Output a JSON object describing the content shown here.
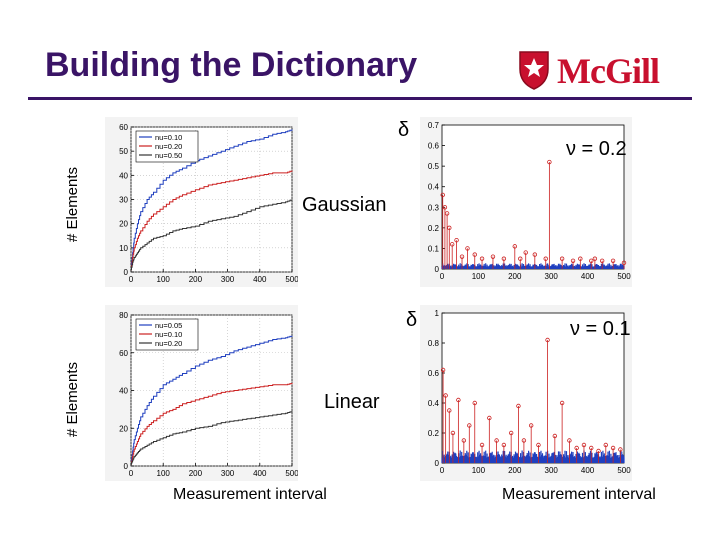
{
  "slide": {
    "title": "Building the Dictionary",
    "logo_text": "McGill",
    "labels": {
      "ylabel_top": "# Elements",
      "ylabel_bottom": "# Elements",
      "gaussian": "Gaussian",
      "linear": "Linear",
      "delta_top": "δ",
      "delta_bottom": "δ",
      "nu_top": "ν = 0.2",
      "nu_bottom": "ν = 0.1",
      "xlabel_left": "Measurement interval",
      "xlabel_right": "Measurement interval"
    }
  },
  "chart_data": [
    {
      "type": "line",
      "id": "gaussian-elements",
      "title": "",
      "xlabel": "Measurement interval",
      "ylabel": "# Elements",
      "xlim": [
        0,
        500
      ],
      "ylim": [
        0,
        60
      ],
      "xticks": [
        0,
        100,
        200,
        300,
        400,
        500
      ],
      "yticks": [
        0,
        10,
        20,
        30,
        40,
        50,
        60
      ],
      "grid": true,
      "legend": "top-left",
      "series": [
        {
          "name": "nu=0.10",
          "color": "#1f3fbf",
          "x": [
            0,
            5,
            10,
            20,
            30,
            50,
            70,
            100,
            130,
            160,
            200,
            240,
            280,
            320,
            360,
            400,
            440,
            480,
            500
          ],
          "y": [
            2,
            8,
            14,
            20,
            25,
            30,
            33,
            38,
            41,
            43,
            46,
            48,
            50,
            52,
            54,
            55,
            57,
            58,
            59
          ]
        },
        {
          "name": "nu=0.20",
          "color": "#cc2020",
          "x": [
            0,
            5,
            10,
            20,
            30,
            50,
            70,
            100,
            130,
            160,
            200,
            240,
            280,
            320,
            360,
            400,
            440,
            480,
            500
          ],
          "y": [
            1,
            6,
            10,
            14,
            17,
            21,
            24,
            27,
            30,
            32,
            34,
            36,
            37,
            38,
            39,
            40,
            41,
            41,
            42
          ]
        },
        {
          "name": "nu=0.50",
          "color": "#333333",
          "x": [
            0,
            5,
            10,
            20,
            30,
            50,
            70,
            100,
            130,
            160,
            200,
            240,
            280,
            320,
            360,
            400,
            440,
            480,
            500
          ],
          "y": [
            1,
            4,
            6,
            8,
            10,
            12,
            14,
            15,
            17,
            18,
            19,
            21,
            22,
            23,
            25,
            27,
            28,
            29,
            30
          ]
        }
      ]
    },
    {
      "type": "line",
      "id": "linear-elements",
      "title": "",
      "xlabel": "Measurement interval",
      "ylabel": "# Elements",
      "xlim": [
        0,
        500
      ],
      "ylim": [
        0,
        80
      ],
      "xticks": [
        0,
        100,
        200,
        300,
        400,
        500
      ],
      "yticks": [
        0,
        20,
        40,
        60,
        80
      ],
      "grid": true,
      "legend": "top-left",
      "series": [
        {
          "name": "nu=0.05",
          "color": "#1f3fbf",
          "x": [
            0,
            5,
            10,
            20,
            30,
            50,
            70,
            100,
            130,
            160,
            200,
            240,
            280,
            320,
            360,
            400,
            440,
            480,
            500
          ],
          "y": [
            2,
            8,
            14,
            20,
            26,
            32,
            37,
            43,
            46,
            49,
            53,
            56,
            58,
            61,
            63,
            65,
            67,
            68,
            69
          ]
        },
        {
          "name": "nu=0.10",
          "color": "#cc2020",
          "x": [
            0,
            5,
            10,
            20,
            30,
            50,
            70,
            100,
            130,
            160,
            200,
            240,
            280,
            320,
            360,
            400,
            440,
            480,
            500
          ],
          "y": [
            1,
            5,
            9,
            13,
            17,
            21,
            24,
            28,
            30,
            33,
            35,
            37,
            39,
            40,
            41,
            42,
            43,
            43,
            44
          ]
        },
        {
          "name": "nu=0.20",
          "color": "#333333",
          "x": [
            0,
            5,
            10,
            20,
            30,
            50,
            70,
            100,
            130,
            160,
            200,
            240,
            280,
            320,
            360,
            400,
            440,
            480,
            500
          ],
          "y": [
            1,
            3,
            5,
            7,
            9,
            11,
            13,
            15,
            17,
            18,
            20,
            21,
            23,
            24,
            25,
            26,
            27,
            28,
            29
          ]
        }
      ]
    },
    {
      "type": "scatter",
      "id": "gaussian-delta",
      "title": "",
      "xlabel": "Measurement interval",
      "ylabel": "δ",
      "annotation": "ν = 0.2",
      "xlim": [
        0,
        500
      ],
      "ylim": [
        0,
        0.7
      ],
      "xticks": [
        0,
        100,
        200,
        300,
        400,
        500
      ],
      "yticks": [
        0,
        0.1,
        0.2,
        0.3,
        0.4,
        0.5,
        0.6,
        0.7
      ],
      "grid": false,
      "baseline_color": "#1f3fbf",
      "baseline_level": 0.02,
      "stem_color": "#cc2020",
      "stems": [
        {
          "x": 2,
          "y": 0.36
        },
        {
          "x": 8,
          "y": 0.3
        },
        {
          "x": 14,
          "y": 0.27
        },
        {
          "x": 20,
          "y": 0.2
        },
        {
          "x": 28,
          "y": 0.12
        },
        {
          "x": 40,
          "y": 0.14
        },
        {
          "x": 55,
          "y": 0.06
        },
        {
          "x": 70,
          "y": 0.1
        },
        {
          "x": 90,
          "y": 0.07
        },
        {
          "x": 110,
          "y": 0.05
        },
        {
          "x": 140,
          "y": 0.06
        },
        {
          "x": 170,
          "y": 0.05
        },
        {
          "x": 200,
          "y": 0.11
        },
        {
          "x": 215,
          "y": 0.05
        },
        {
          "x": 230,
          "y": 0.08
        },
        {
          "x": 255,
          "y": 0.07
        },
        {
          "x": 285,
          "y": 0.05
        },
        {
          "x": 295,
          "y": 0.52
        },
        {
          "x": 330,
          "y": 0.05
        },
        {
          "x": 360,
          "y": 0.04
        },
        {
          "x": 380,
          "y": 0.05
        },
        {
          "x": 410,
          "y": 0.04
        },
        {
          "x": 440,
          "y": 0.04
        },
        {
          "x": 470,
          "y": 0.04
        },
        {
          "x": 500,
          "y": 0.03
        },
        {
          "x": 420,
          "y": 0.05
        }
      ]
    },
    {
      "type": "scatter",
      "id": "linear-delta",
      "title": "",
      "xlabel": "Measurement interval",
      "ylabel": "δ",
      "annotation": "ν = 0.1",
      "xlim": [
        0,
        500
      ],
      "ylim": [
        0,
        1
      ],
      "xticks": [
        0,
        100,
        200,
        300,
        400,
        500
      ],
      "yticks": [
        0,
        0.2,
        0.4,
        0.6,
        0.8,
        1
      ],
      "grid": false,
      "baseline_color": "#1f3fbf",
      "baseline_level": 0.06,
      "stem_color": "#cc2020",
      "stems": [
        {
          "x": 3,
          "y": 0.62
        },
        {
          "x": 10,
          "y": 0.45
        },
        {
          "x": 20,
          "y": 0.35
        },
        {
          "x": 30,
          "y": 0.2
        },
        {
          "x": 45,
          "y": 0.42
        },
        {
          "x": 60,
          "y": 0.15
        },
        {
          "x": 75,
          "y": 0.25
        },
        {
          "x": 90,
          "y": 0.4
        },
        {
          "x": 110,
          "y": 0.12
        },
        {
          "x": 130,
          "y": 0.3
        },
        {
          "x": 150,
          "y": 0.15
        },
        {
          "x": 170,
          "y": 0.12
        },
        {
          "x": 190,
          "y": 0.2
        },
        {
          "x": 210,
          "y": 0.38
        },
        {
          "x": 225,
          "y": 0.15
        },
        {
          "x": 245,
          "y": 0.25
        },
        {
          "x": 265,
          "y": 0.12
        },
        {
          "x": 290,
          "y": 0.82
        },
        {
          "x": 310,
          "y": 0.18
        },
        {
          "x": 330,
          "y": 0.4
        },
        {
          "x": 350,
          "y": 0.15
        },
        {
          "x": 370,
          "y": 0.1
        },
        {
          "x": 390,
          "y": 0.12
        },
        {
          "x": 410,
          "y": 0.1
        },
        {
          "x": 430,
          "y": 0.08
        },
        {
          "x": 450,
          "y": 0.12
        },
        {
          "x": 470,
          "y": 0.1
        },
        {
          "x": 490,
          "y": 0.09
        }
      ]
    }
  ]
}
